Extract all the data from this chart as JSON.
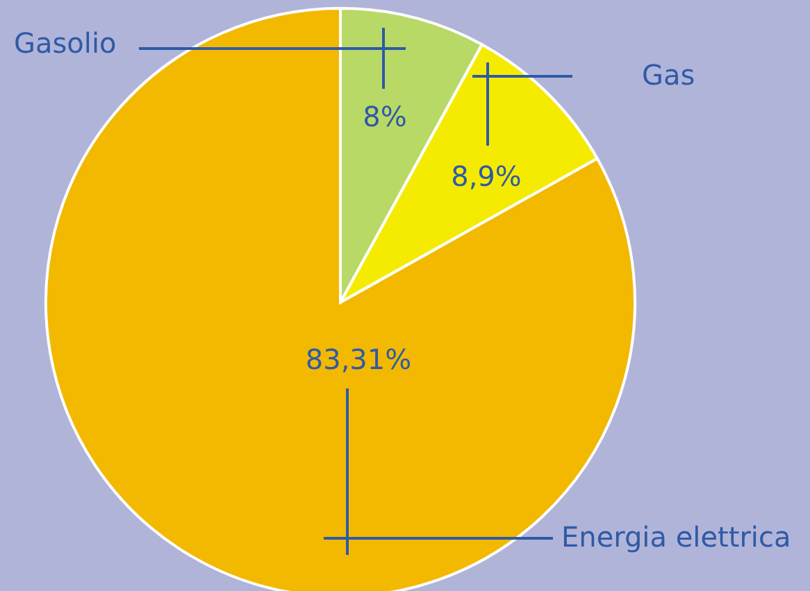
{
  "chart_data": {
    "type": "pie",
    "categories": [
      "Gasolio",
      "Gas",
      "Energia elettrica"
    ],
    "values": [
      8,
      8.9,
      83.31
    ],
    "colors": [
      "#b9d967",
      "#f5eb00",
      "#f2b900"
    ],
    "value_labels": [
      "8%",
      "8,9%",
      "83,31%"
    ]
  }
}
